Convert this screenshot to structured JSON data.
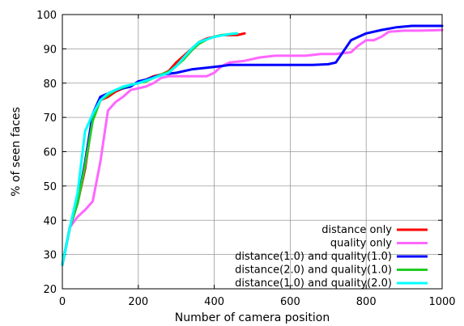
{
  "chart_data": {
    "type": "line",
    "xlabel": "Number of camera position",
    "ylabel": "% of seen faces",
    "xlim": [
      0,
      1000
    ],
    "ylim": [
      20,
      100
    ],
    "xticks": [
      0,
      200,
      400,
      600,
      800,
      1000
    ],
    "yticks": [
      20,
      30,
      40,
      50,
      60,
      70,
      80,
      90,
      100
    ],
    "grid": true,
    "legend_position": "bottom-right",
    "series": [
      {
        "name": "distance only",
        "color": "#ff0000",
        "points": [
          [
            0,
            27
          ],
          [
            20,
            38
          ],
          [
            40,
            45
          ],
          [
            60,
            55
          ],
          [
            80,
            70
          ],
          [
            100,
            75
          ],
          [
            120,
            76
          ],
          [
            140,
            77.5
          ],
          [
            160,
            78.5
          ],
          [
            180,
            79.5
          ],
          [
            200,
            80
          ],
          [
            220,
            81
          ],
          [
            240,
            82
          ],
          [
            260,
            82.5
          ],
          [
            280,
            83.5
          ],
          [
            300,
            86
          ],
          [
            320,
            88
          ],
          [
            340,
            90
          ],
          [
            360,
            92
          ],
          [
            380,
            93
          ],
          [
            400,
            93.5
          ],
          [
            420,
            94
          ],
          [
            440,
            94
          ],
          [
            460,
            94
          ],
          [
            480,
            94.5
          ]
        ]
      },
      {
        "name": "quality only",
        "color": "#ff66ff",
        "points": [
          [
            0,
            27
          ],
          [
            20,
            38
          ],
          [
            40,
            41
          ],
          [
            60,
            43
          ],
          [
            80,
            45.5
          ],
          [
            100,
            57
          ],
          [
            120,
            72
          ],
          [
            140,
            74.5
          ],
          [
            160,
            76
          ],
          [
            180,
            78
          ],
          [
            200,
            78.5
          ],
          [
            220,
            79
          ],
          [
            240,
            80
          ],
          [
            260,
            81.5
          ],
          [
            280,
            82
          ],
          [
            300,
            82
          ],
          [
            340,
            82
          ],
          [
            380,
            82
          ],
          [
            400,
            83
          ],
          [
            420,
            85
          ],
          [
            440,
            86
          ],
          [
            480,
            86.5
          ],
          [
            520,
            87.5
          ],
          [
            560,
            88
          ],
          [
            600,
            88
          ],
          [
            640,
            88
          ],
          [
            680,
            88.5
          ],
          [
            720,
            88.5
          ],
          [
            760,
            89
          ],
          [
            780,
            91
          ],
          [
            800,
            92.5
          ],
          [
            820,
            92.5
          ],
          [
            840,
            93.5
          ],
          [
            860,
            95
          ],
          [
            900,
            95.3
          ],
          [
            940,
            95.3
          ],
          [
            1000,
            95.5
          ]
        ]
      },
      {
        "name": "distance(1.0) and quality(1.0)",
        "color": "#0000ff",
        "points": [
          [
            0,
            27
          ],
          [
            20,
            38
          ],
          [
            40,
            45
          ],
          [
            60,
            57
          ],
          [
            80,
            71
          ],
          [
            100,
            76
          ],
          [
            120,
            77
          ],
          [
            140,
            78
          ],
          [
            180,
            79
          ],
          [
            200,
            80.5
          ],
          [
            220,
            81
          ],
          [
            260,
            82.5
          ],
          [
            300,
            83
          ],
          [
            340,
            84
          ],
          [
            380,
            84.5
          ],
          [
            420,
            85
          ],
          [
            440,
            85.3
          ],
          [
            480,
            85.3
          ],
          [
            540,
            85.3
          ],
          [
            600,
            85.3
          ],
          [
            660,
            85.3
          ],
          [
            700,
            85.5
          ],
          [
            720,
            86
          ],
          [
            760,
            92.5
          ],
          [
            800,
            94.5
          ],
          [
            840,
            95.5
          ],
          [
            880,
            96.3
          ],
          [
            920,
            96.7
          ],
          [
            960,
            96.7
          ],
          [
            1000,
            96.7
          ]
        ]
      },
      {
        "name": "distance(2.0) and quality(1.0)",
        "color": "#22cc22",
        "points": [
          [
            0,
            27
          ],
          [
            20,
            38
          ],
          [
            40,
            45
          ],
          [
            60,
            56
          ],
          [
            80,
            69
          ],
          [
            100,
            75
          ],
          [
            120,
            76.5
          ],
          [
            140,
            78
          ],
          [
            180,
            79.5
          ],
          [
            200,
            80
          ],
          [
            220,
            80.5
          ],
          [
            240,
            81.5
          ],
          [
            260,
            82.5
          ],
          [
            280,
            83.3
          ],
          [
            300,
            85
          ],
          [
            320,
            87
          ],
          [
            340,
            89.5
          ],
          [
            360,
            91.5
          ],
          [
            380,
            92.7
          ],
          [
            400,
            93.5
          ],
          [
            420,
            94
          ],
          [
            440,
            94.3
          ],
          [
            460,
            94.5
          ]
        ]
      },
      {
        "name": "distance(1.0) and quality(2.0)",
        "color": "#00ffff",
        "points": [
          [
            0,
            27
          ],
          [
            20,
            38
          ],
          [
            40,
            48
          ],
          [
            60,
            66
          ],
          [
            80,
            71
          ],
          [
            100,
            75
          ],
          [
            120,
            77
          ],
          [
            140,
            78
          ],
          [
            160,
            79
          ],
          [
            200,
            80
          ],
          [
            240,
            81.5
          ],
          [
            280,
            83
          ],
          [
            300,
            85
          ],
          [
            320,
            87.5
          ],
          [
            340,
            90
          ],
          [
            360,
            92
          ],
          [
            400,
            93.5
          ],
          [
            440,
            94.3
          ],
          [
            460,
            94.5
          ]
        ]
      }
    ]
  }
}
